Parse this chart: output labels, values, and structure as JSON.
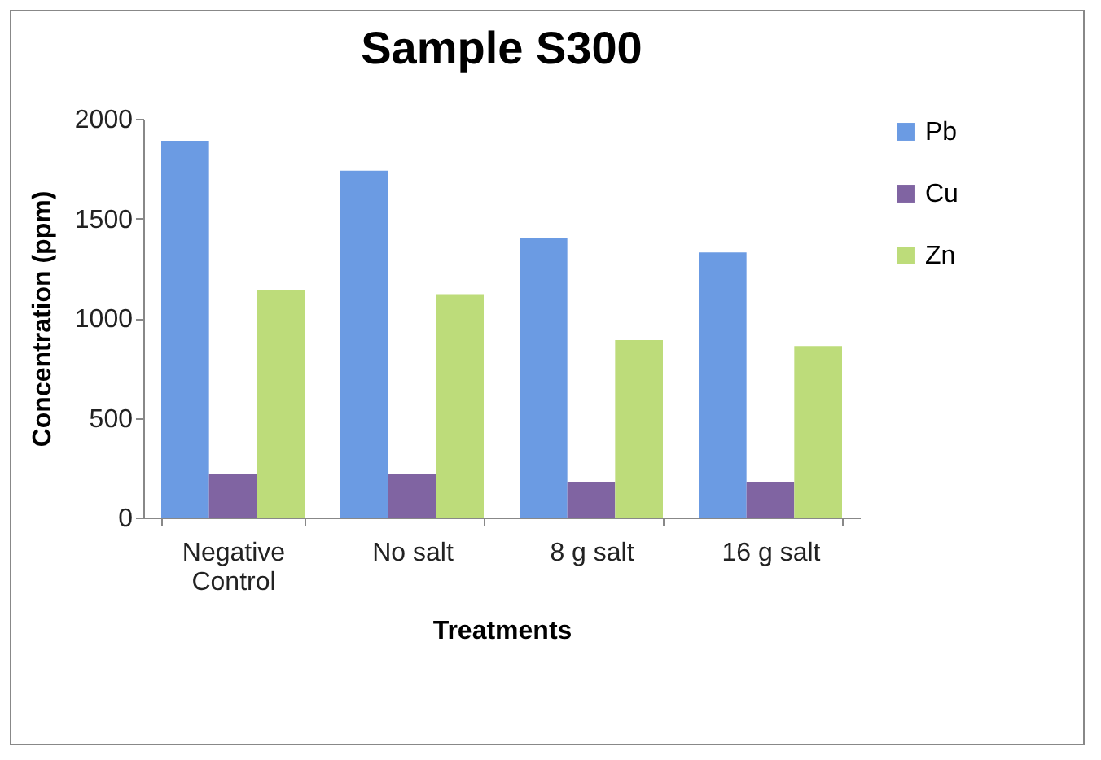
{
  "chart_data": {
    "type": "bar",
    "title": "Sample S300",
    "xlabel": "Treatments",
    "ylabel": "Concentration (ppm)",
    "categories": [
      "Negative Control",
      "No salt",
      "8 g salt",
      "16 g salt"
    ],
    "series": [
      {
        "name": "Pb",
        "color": "#6b9be3",
        "values": [
          1890,
          1740,
          1400,
          1330
        ]
      },
      {
        "name": "Cu",
        "color": "#8064a2",
        "values": [
          220,
          220,
          180,
          180
        ]
      },
      {
        "name": "Zn",
        "color": "#bddc7a",
        "values": [
          1140,
          1120,
          890,
          860
        ]
      }
    ],
    "ylim": [
      0,
      2000
    ],
    "yticks": [
      0,
      500,
      1000,
      1500,
      2000
    ],
    "grid": false,
    "legend": "right"
  }
}
